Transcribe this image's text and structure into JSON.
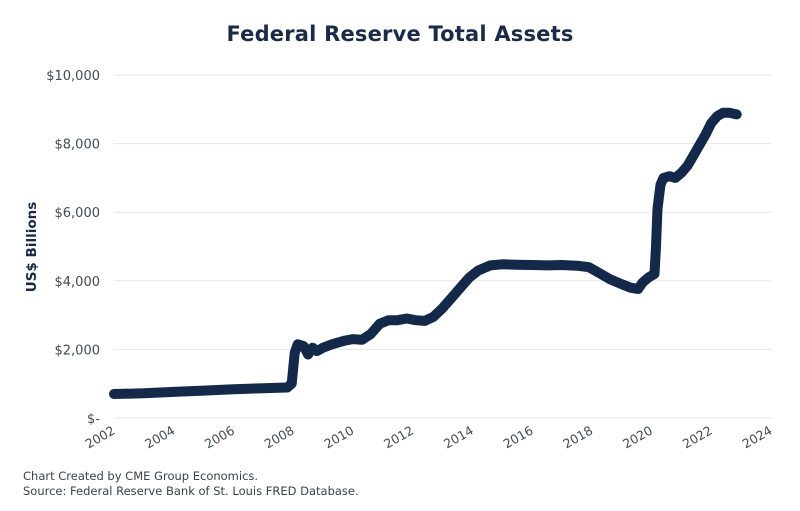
{
  "chart_data": {
    "type": "line",
    "title": "Federal Reserve Total Assets",
    "xlabel": "",
    "ylabel": "US$ Billions",
    "xlim": [
      2002,
      2024
    ],
    "ylim": [
      0,
      10000
    ],
    "grid": true,
    "legend": "none",
    "x_ticks": [
      "2002",
      "2004",
      "2006",
      "2008",
      "2010",
      "2012",
      "2014",
      "2016",
      "2018",
      "2020",
      "2022",
      "2024"
    ],
    "y_ticks": [
      "$-",
      "$2,000",
      "$4,000",
      "$6,000",
      "$8,000",
      "$10,000"
    ],
    "y_tick_values": [
      0,
      2000,
      4000,
      6000,
      8000,
      10000
    ],
    "x_tick_values": [
      2002,
      2004,
      2006,
      2008,
      2010,
      2012,
      2014,
      2016,
      2018,
      2020,
      2022,
      2024
    ],
    "series": [
      {
        "name": "Federal Reserve Total Assets",
        "color": "#14294a",
        "points": [
          [
            2002.0,
            700
          ],
          [
            2003.0,
            720
          ],
          [
            2004.0,
            760
          ],
          [
            2005.0,
            800
          ],
          [
            2006.0,
            840
          ],
          [
            2007.0,
            870
          ],
          [
            2007.5,
            880
          ],
          [
            2007.8,
            890
          ],
          [
            2007.95,
            1000
          ],
          [
            2008.05,
            1900
          ],
          [
            2008.15,
            2150
          ],
          [
            2008.35,
            2100
          ],
          [
            2008.5,
            1850
          ],
          [
            2008.65,
            2050
          ],
          [
            2008.8,
            1950
          ],
          [
            2009.0,
            2050
          ],
          [
            2009.3,
            2150
          ],
          [
            2009.7,
            2250
          ],
          [
            2010.0,
            2300
          ],
          [
            2010.3,
            2280
          ],
          [
            2010.6,
            2450
          ],
          [
            2010.9,
            2750
          ],
          [
            2011.2,
            2850
          ],
          [
            2011.5,
            2850
          ],
          [
            2011.8,
            2900
          ],
          [
            2012.1,
            2850
          ],
          [
            2012.4,
            2830
          ],
          [
            2012.7,
            2950
          ],
          [
            2013.0,
            3200
          ],
          [
            2013.3,
            3500
          ],
          [
            2013.6,
            3800
          ],
          [
            2013.9,
            4100
          ],
          [
            2014.2,
            4300
          ],
          [
            2014.6,
            4450
          ],
          [
            2015.0,
            4480
          ],
          [
            2015.5,
            4470
          ],
          [
            2016.0,
            4460
          ],
          [
            2016.5,
            4450
          ],
          [
            2017.0,
            4460
          ],
          [
            2017.5,
            4440
          ],
          [
            2017.9,
            4400
          ],
          [
            2018.2,
            4250
          ],
          [
            2018.6,
            4050
          ],
          [
            2019.0,
            3900
          ],
          [
            2019.3,
            3800
          ],
          [
            2019.55,
            3760
          ],
          [
            2019.7,
            3950
          ],
          [
            2019.9,
            4100
          ],
          [
            2020.1,
            4200
          ],
          [
            2020.15,
            5000
          ],
          [
            2020.2,
            6100
          ],
          [
            2020.3,
            6800
          ],
          [
            2020.4,
            7000
          ],
          [
            2020.6,
            7050
          ],
          [
            2020.8,
            7000
          ],
          [
            2021.0,
            7150
          ],
          [
            2021.2,
            7350
          ],
          [
            2021.4,
            7650
          ],
          [
            2021.6,
            7950
          ],
          [
            2021.8,
            8250
          ],
          [
            2022.0,
            8600
          ],
          [
            2022.2,
            8800
          ],
          [
            2022.4,
            8900
          ],
          [
            2022.6,
            8900
          ],
          [
            2022.85,
            8850
          ]
        ]
      }
    ],
    "annotations": []
  },
  "footer": {
    "line1": "Chart Created by CME Group Economics.",
    "line2": "Source: Federal Reserve Bank of St. Louis FRED Database."
  }
}
